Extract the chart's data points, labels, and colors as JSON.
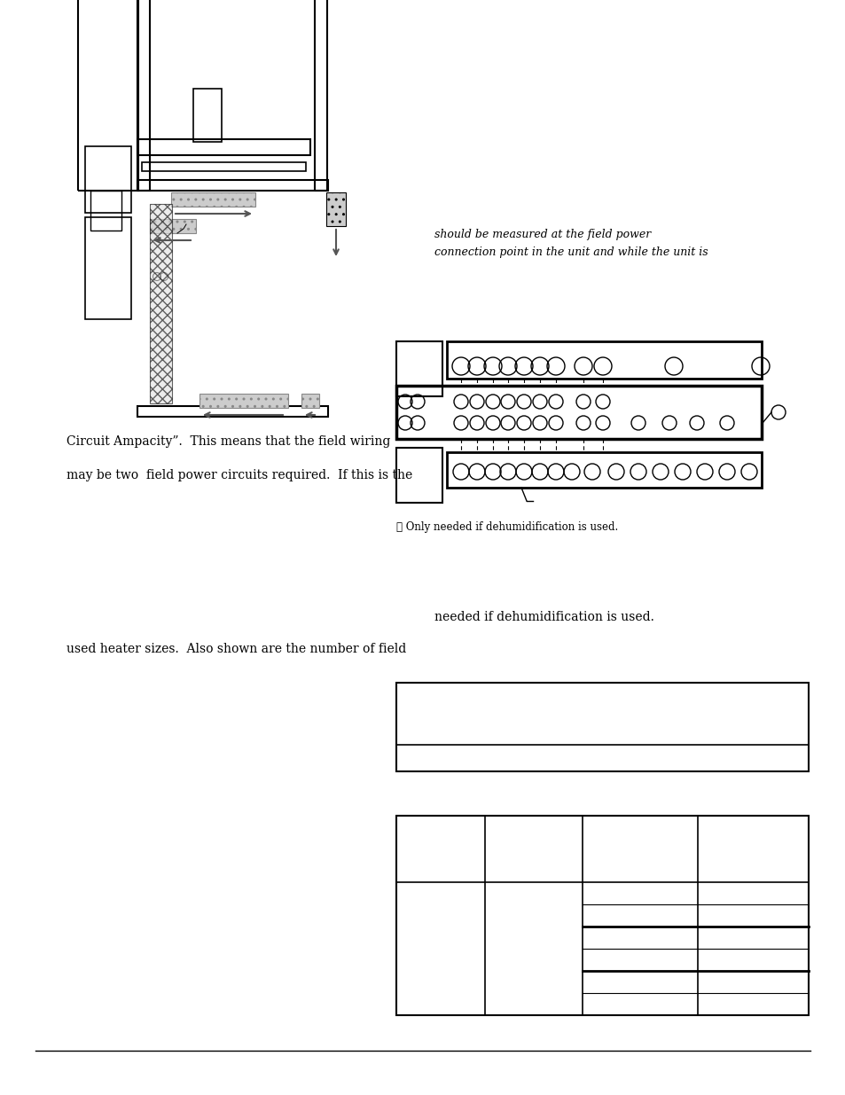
{
  "bg_color": "#ffffff",
  "text_color": "#000000",
  "page_width": 9.54,
  "page_height": 12.35,
  "italic_text_1": "should be measured at the field power",
  "italic_text_2": "connection point in the unit and while the unit is",
  "text_left_1": "Circuit Ampacity”.  This means that the field wiring",
  "text_left_2": "may be two  field power circuits required.  If this is the",
  "text_right_bottom_1": "needed if dehumidification is used.",
  "text_left_bottom_2": "used heater sizes.  Also shown are the number of field",
  "footnote": "① Only needed if dehumidification is used."
}
